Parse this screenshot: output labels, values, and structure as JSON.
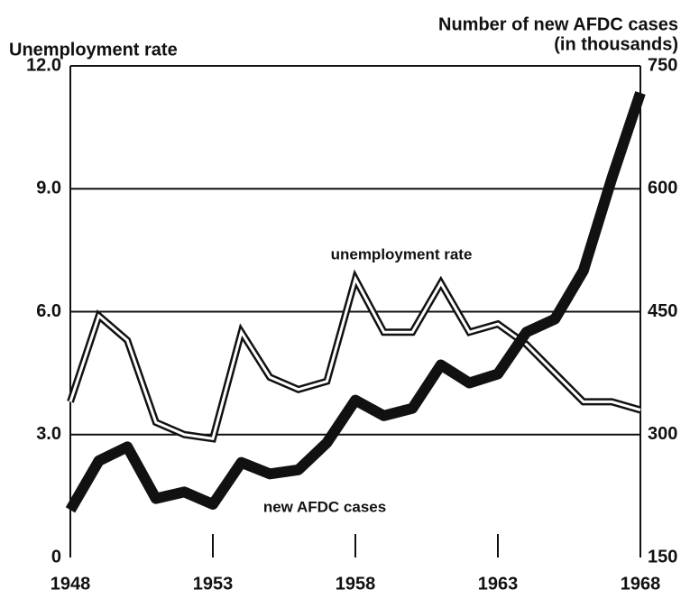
{
  "chart_data": {
    "type": "line",
    "ylabel": "Unemployment rate",
    "y2label": "Number of new AFDC cases",
    "y2label_sub": "(in thousands)",
    "annotations": [
      "unemployment rate",
      "new AFDC cases"
    ],
    "x": [
      1948,
      1949,
      1950,
      1951,
      1952,
      1953,
      1954,
      1955,
      1956,
      1957,
      1958,
      1959,
      1960,
      1961,
      1962,
      1963,
      1964,
      1965,
      1966,
      1967,
      1968
    ],
    "xlim": [
      1948,
      1968
    ],
    "xticks": [
      1948,
      1953,
      1958,
      1963,
      1968
    ],
    "ylim": [
      0,
      12
    ],
    "yticks": [
      0,
      {
        "value": 3,
        "label": "3.0"
      },
      {
        "value": 6,
        "label": "6.0"
      },
      {
        "value": 9,
        "label": "9.0"
      },
      {
        "value": 12,
        "label": "12.0"
      }
    ],
    "y2lim": [
      150,
      750
    ],
    "y2ticks": [
      150,
      300,
      450,
      600,
      750
    ],
    "grid": true,
    "series": [
      {
        "name": "unemployment rate",
        "color": "#111111",
        "values": [
          3.8,
          5.9,
          5.3,
          3.3,
          3.0,
          2.9,
          5.5,
          4.4,
          4.1,
          4.3,
          6.8,
          5.5,
          5.5,
          6.7,
          5.5,
          5.7,
          5.2,
          4.5,
          3.8,
          3.8,
          3.6
        ]
      },
      {
        "name": "new AFDC cases",
        "color": "#111111",
        "axis": "y2",
        "values": [
          208,
          268,
          285,
          222,
          230,
          215,
          266,
          252,
          257,
          290,
          342,
          323,
          332,
          385,
          363,
          374,
          425,
          441,
          500,
          613,
          717
        ]
      }
    ]
  }
}
